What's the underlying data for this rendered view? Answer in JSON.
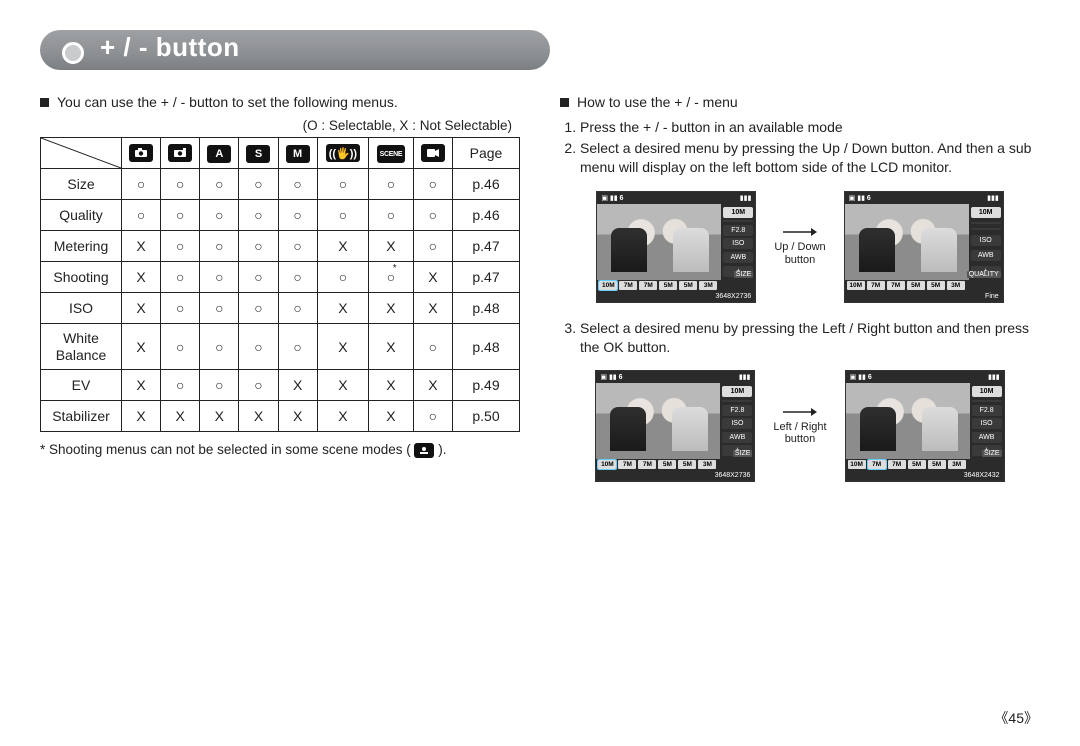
{
  "title": "+ / - button",
  "left": {
    "intro": "You can use the + / - button to set the following menus.",
    "legend": "(O : Selectable, X : Not Selectable)",
    "footnote_pre": "* Shooting menus can not be selected in some scene modes (",
    "footnote_post": ").",
    "header_icons": [
      {
        "name": "camera-icon",
        "glyph": "■"
      },
      {
        "name": "camera2-icon",
        "glyph": "▣"
      },
      {
        "name": "a-icon",
        "glyph": "A"
      },
      {
        "name": "s-icon",
        "glyph": "S"
      },
      {
        "name": "m-icon",
        "glyph": "M"
      },
      {
        "name": "hand-icon",
        "glyph": "✋"
      },
      {
        "name": "scene-icon",
        "glyph": "SCENE"
      },
      {
        "name": "movie-icon",
        "glyph": "⚙"
      }
    ],
    "page_label": "Page",
    "rows": [
      {
        "label": "Size",
        "cells": [
          "○",
          "○",
          "○",
          "○",
          "○",
          "○",
          "○",
          "○"
        ],
        "page": "p.46"
      },
      {
        "label": "Quality",
        "cells": [
          "○",
          "○",
          "○",
          "○",
          "○",
          "○",
          "○",
          "○"
        ],
        "page": "p.46"
      },
      {
        "label": "Metering",
        "cells": [
          "X",
          "○",
          "○",
          "○",
          "○",
          "X",
          "X",
          "○"
        ],
        "page": "p.47"
      },
      {
        "label": "Shooting",
        "cells": [
          "X",
          "○",
          "○",
          "○",
          "○",
          "○",
          "*○",
          "X"
        ],
        "page": "p.47",
        "star": 6
      },
      {
        "label": "ISO",
        "cells": [
          "X",
          "○",
          "○",
          "○",
          "○",
          "X",
          "X",
          "X"
        ],
        "page": "p.48"
      },
      {
        "label": "White\nBalance",
        "cells": [
          "X",
          "○",
          "○",
          "○",
          "○",
          "X",
          "X",
          "○"
        ],
        "page": "p.48",
        "tall": true
      },
      {
        "label": "EV",
        "cells": [
          "X",
          "○",
          "○",
          "○",
          "X",
          "X",
          "X",
          "X"
        ],
        "page": "p.49"
      },
      {
        "label": "Stabilizer",
        "cells": [
          "X",
          "X",
          "X",
          "X",
          "X",
          "X",
          "X",
          "○"
        ],
        "page": "p.50"
      }
    ]
  },
  "right": {
    "intro": "How to use the + / - menu",
    "steps12": [
      "Press the + / - button in an available mode",
      "Select a desired menu by pressing the Up / Down button. And then a sub menu will display on the left bottom side of the LCD monitor."
    ],
    "step3": "Select a desired menu by pressing the Left / Right button and then press the OK button.",
    "arrow1": "Up / Down\nbutton",
    "arrow2": "Left / Right\nbutton",
    "lcd_count": "6",
    "lcd_right_items": [
      "10M",
      "",
      "F2.8",
      "ISO",
      "AWB",
      "±"
    ],
    "lcd_right_items_b": [
      "10M",
      "",
      "",
      "ISO",
      "AWB",
      "±"
    ],
    "lcd_side_label_size": "SIZE",
    "lcd_side_label_quality": "QUALITY",
    "lcd_bottom_chips": [
      "10M",
      "7M",
      "7M",
      "5M",
      "5M",
      "3M"
    ],
    "lcd_reso_a": "3648X2736",
    "lcd_reso_b": "Fine",
    "lcd_reso_c": "3648X2736",
    "lcd_reso_d": "3648X2432"
  },
  "page_number": "45",
  "colors": {
    "pill_bg_top": "#9ea1a4",
    "pill_bg_bot": "#7c7f82",
    "border": "#222222",
    "icon_bg": "#111111",
    "lcd_dark": "#2b2b2b"
  }
}
